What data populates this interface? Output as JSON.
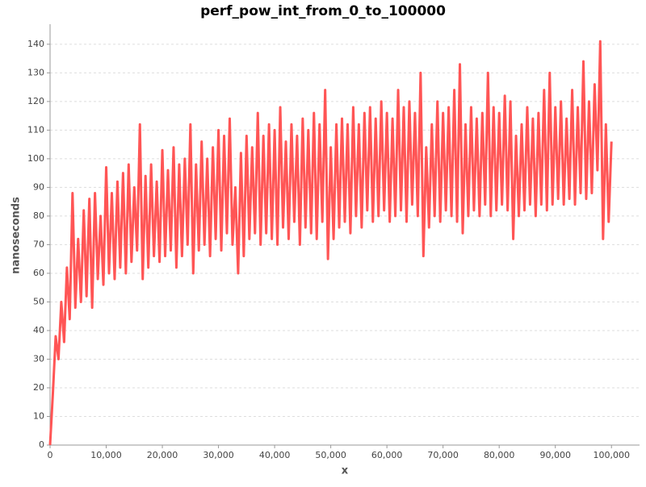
{
  "chart_data": {
    "type": "line",
    "title": "perf_pow_int_from_0_to_100000",
    "x_label": "x",
    "y_label": "nanoseconds",
    "xlim": [
      0,
      105000
    ],
    "ylim": [
      0,
      147
    ],
    "xticks": [
      0,
      {
        "value": 10000,
        "label": "10,000"
      },
      {
        "value": 20000,
        "label": "20,000"
      },
      {
        "value": 30000,
        "label": "30,000"
      },
      {
        "value": 40000,
        "label": "40,000"
      },
      {
        "value": 50000,
        "label": "50,000"
      },
      {
        "value": 60000,
        "label": "60,000"
      },
      {
        "value": 70000,
        "label": "70,000"
      },
      {
        "value": 80000,
        "label": "80,000"
      },
      {
        "value": 90000,
        "label": "90,000"
      },
      {
        "value": 100000,
        "label": "100,000"
      }
    ],
    "yticks": [
      0,
      10,
      20,
      30,
      40,
      50,
      60,
      70,
      80,
      90,
      100,
      110,
      120,
      130,
      140
    ],
    "grid": true,
    "x": [
      0,
      500,
      1000,
      1500,
      2000,
      2500,
      3000,
      3500,
      4000,
      4500,
      5000,
      5500,
      6000,
      6500,
      7000,
      7500,
      8000,
      8500,
      9000,
      9500,
      10000,
      10500,
      11000,
      11500,
      12000,
      12500,
      13000,
      13500,
      14000,
      14500,
      15000,
      15500,
      16000,
      16500,
      17000,
      17500,
      18000,
      18500,
      19000,
      19500,
      20000,
      20500,
      21000,
      21500,
      22000,
      22500,
      23000,
      23500,
      24000,
      24500,
      25000,
      25500,
      26000,
      26500,
      27000,
      27500,
      28000,
      28500,
      29000,
      29500,
      30000,
      30500,
      31000,
      31500,
      32000,
      32500,
      33000,
      33500,
      34000,
      34500,
      35000,
      35500,
      36000,
      36500,
      37000,
      37500,
      38000,
      38500,
      39000,
      39500,
      40000,
      40500,
      41000,
      41500,
      42000,
      42500,
      43000,
      43500,
      44000,
      44500,
      45000,
      45500,
      46000,
      46500,
      47000,
      47500,
      48000,
      48500,
      49000,
      49500,
      50000,
      50500,
      51000,
      51500,
      52000,
      52500,
      53000,
      53500,
      54000,
      54500,
      55000,
      55500,
      56000,
      56500,
      57000,
      57500,
      58000,
      58500,
      59000,
      59500,
      60000,
      60500,
      61000,
      61500,
      62000,
      62500,
      63000,
      63500,
      64000,
      64500,
      65000,
      65500,
      66000,
      66500,
      67000,
      67500,
      68000,
      68500,
      69000,
      69500,
      70000,
      70500,
      71000,
      71500,
      72000,
      72500,
      73000,
      73500,
      74000,
      74500,
      75000,
      75500,
      76000,
      76500,
      77000,
      77500,
      78000,
      78500,
      79000,
      79500,
      80000,
      80500,
      81000,
      81500,
      82000,
      82500,
      83000,
      83500,
      84000,
      84500,
      85000,
      85500,
      86000,
      86500,
      87000,
      87500,
      88000,
      88500,
      89000,
      89500,
      90000,
      90500,
      91000,
      91500,
      92000,
      92500,
      93000,
      93500,
      94000,
      94500,
      95000,
      95500,
      96000,
      96500,
      97000,
      97500,
      98000,
      98500,
      99000,
      99500,
      100000
    ],
    "series": [
      {
        "name": "nanoseconds",
        "color": "#ff5555",
        "values": [
          0,
          18,
          38,
          30,
          50,
          36,
          62,
          44,
          88,
          48,
          72,
          50,
          82,
          52,
          86,
          48,
          88,
          58,
          80,
          56,
          97,
          60,
          88,
          58,
          92,
          62,
          95,
          60,
          98,
          64,
          90,
          68,
          112,
          58,
          94,
          62,
          98,
          66,
          92,
          64,
          103,
          66,
          96,
          68,
          104,
          62,
          98,
          66,
          100,
          70,
          112,
          60,
          98,
          68,
          106,
          70,
          100,
          66,
          104,
          72,
          110,
          68,
          108,
          74,
          114,
          70,
          90,
          60,
          102,
          66,
          108,
          72,
          104,
          74,
          116,
          70,
          108,
          74,
          112,
          72,
          110,
          70,
          118,
          76,
          106,
          72,
          112,
          78,
          108,
          70,
          114,
          76,
          110,
          74,
          116,
          72,
          112,
          78,
          124,
          65,
          104,
          72,
          112,
          76,
          114,
          78,
          112,
          74,
          118,
          80,
          112,
          76,
          116,
          82,
          118,
          78,
          114,
          80,
          120,
          82,
          116,
          78,
          114,
          80,
          124,
          82,
          118,
          78,
          120,
          84,
          116,
          80,
          130,
          66,
          104,
          76,
          112,
          80,
          120,
          78,
          116,
          82,
          118,
          80,
          124,
          78,
          133,
          74,
          112,
          80,
          118,
          82,
          114,
          80,
          116,
          84,
          130,
          80,
          118,
          82,
          116,
          84,
          122,
          82,
          120,
          72,
          108,
          80,
          112,
          82,
          118,
          84,
          114,
          80,
          116,
          84,
          124,
          82,
          130,
          84,
          118,
          86,
          120,
          84,
          114,
          86,
          124,
          84,
          118,
          88,
          134,
          86,
          120,
          88,
          126,
          96,
          141,
          72,
          112,
          78,
          106
        ]
      }
    ]
  }
}
